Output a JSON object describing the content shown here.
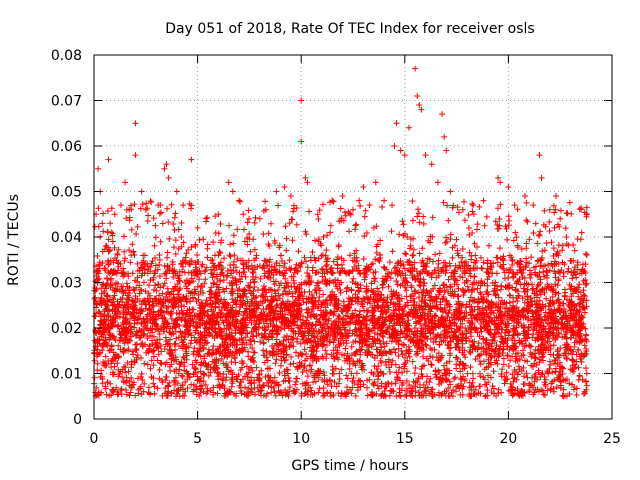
{
  "chart_data": {
    "type": "scatter",
    "title": "Day 051 of 2018, Rate Of TEC Index for receiver osls",
    "xlabel": "GPS time / hours",
    "ylabel": "ROTI / TECUs",
    "xlim": [
      0,
      25
    ],
    "ylim": [
      0,
      0.08
    ],
    "xticks": [
      0,
      5,
      10,
      15,
      20,
      25
    ],
    "xtick_labels": [
      "0",
      "5",
      "10",
      "15",
      "20",
      "25"
    ],
    "yticks": [
      0,
      0.01,
      0.02,
      0.03,
      0.04,
      0.05,
      0.06,
      0.07,
      0.08
    ],
    "ytick_labels": [
      "0",
      "0.01",
      "0.02",
      "0.03",
      "0.04",
      "0.05",
      "0.06",
      "0.07",
      "0.08"
    ],
    "grid": true,
    "marker": "+",
    "marker_color": "#ff0000",
    "series": [
      {
        "name": "ROTI",
        "x_range": [
          0,
          23.8
        ],
        "typical_range": [
          0.005,
          0.035
        ],
        "points": [
          [
            0.1,
            0.045
          ],
          [
            0.2,
            0.055
          ],
          [
            0.3,
            0.05
          ],
          [
            0.4,
            0.043
          ],
          [
            0.6,
            0.038
          ],
          [
            0.7,
            0.057
          ],
          [
            1.0,
            0.045
          ],
          [
            1.3,
            0.047
          ],
          [
            1.5,
            0.052
          ],
          [
            1.7,
            0.046
          ],
          [
            2.0,
            0.065
          ],
          [
            2.0,
            0.058
          ],
          [
            2.3,
            0.05
          ],
          [
            2.5,
            0.046
          ],
          [
            3.1,
            0.047
          ],
          [
            3.4,
            0.055
          ],
          [
            3.5,
            0.056
          ],
          [
            3.6,
            0.053
          ],
          [
            4.0,
            0.05
          ],
          [
            4.3,
            0.047
          ],
          [
            4.7,
            0.057
          ],
          [
            5.0,
            0.042
          ],
          [
            6.0,
            0.045
          ],
          [
            6.5,
            0.052
          ],
          [
            6.7,
            0.05
          ],
          [
            7.0,
            0.048
          ],
          [
            7.2,
            0.045
          ],
          [
            8.0,
            0.044
          ],
          [
            8.8,
            0.05
          ],
          [
            9.2,
            0.051
          ],
          [
            9.5,
            0.049
          ],
          [
            10.0,
            0.07
          ],
          [
            10.0,
            0.061
          ],
          [
            10.2,
            0.053
          ],
          [
            10.3,
            0.052
          ],
          [
            10.8,
            0.045
          ],
          [
            11.5,
            0.048
          ],
          [
            12.0,
            0.049
          ],
          [
            12.5,
            0.046
          ],
          [
            12.8,
            0.048
          ],
          [
            13.0,
            0.051
          ],
          [
            13.3,
            0.047
          ],
          [
            13.6,
            0.052
          ],
          [
            14.0,
            0.048
          ],
          [
            14.5,
            0.06
          ],
          [
            14.6,
            0.065
          ],
          [
            14.8,
            0.059
          ],
          [
            15.0,
            0.058
          ],
          [
            15.2,
            0.064
          ],
          [
            15.5,
            0.077
          ],
          [
            15.6,
            0.071
          ],
          [
            15.7,
            0.069
          ],
          [
            15.8,
            0.068
          ],
          [
            16.0,
            0.058
          ],
          [
            16.3,
            0.056
          ],
          [
            16.6,
            0.052
          ],
          [
            16.8,
            0.067
          ],
          [
            16.9,
            0.062
          ],
          [
            17.0,
            0.059
          ],
          [
            17.2,
            0.05
          ],
          [
            17.8,
            0.046
          ],
          [
            18.3,
            0.047
          ],
          [
            18.8,
            0.048
          ],
          [
            19.5,
            0.053
          ],
          [
            19.6,
            0.052
          ],
          [
            20.0,
            0.051
          ],
          [
            20.3,
            0.047
          ],
          [
            20.8,
            0.049
          ],
          [
            21.2,
            0.047
          ],
          [
            21.5,
            0.058
          ],
          [
            21.6,
            0.053
          ],
          [
            22.0,
            0.046
          ],
          [
            22.3,
            0.049
          ],
          [
            22.5,
            0.044
          ],
          [
            22.8,
            0.04
          ],
          [
            23.2,
            0.037
          ],
          [
            23.6,
            0.034
          ]
        ]
      }
    ]
  }
}
